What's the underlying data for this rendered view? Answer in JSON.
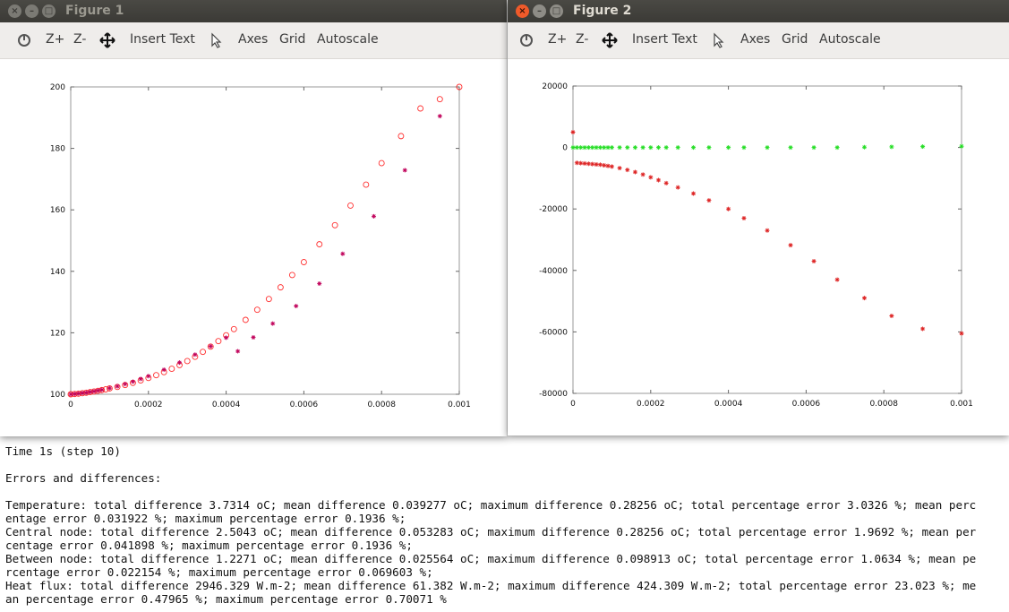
{
  "terminal": {
    "lines": [
      "Time 1s (step 10)",
      "",
      "Errors and differences:",
      "",
      "Temperature: total difference 3.7314 oC; mean difference 0.039277 oC; maximum difference 0.28256 oC; total percentage error 3.0326 %; mean perc",
      "entage error 0.031922 %; maximum percentage error 0.1936 %;",
      "Central node: total difference 2.5043 oC; mean difference 0.053283 oC; maximum difference 0.28256 oC; total percentage error 1.9692 %; mean per",
      "centage error 0.041898 %; maximum percentage error 0.1936 %;",
      "Between node: total difference 1.2271 oC; mean difference 0.025564 oC; maximum difference 0.098913 oC; total percentage error 1.0634 %; mean pe",
      "rcentage error 0.022154 %; maximum percentage error 0.069603 %;",
      "Heat flux: total difference 2946.329 W.m-2; mean difference 61.382 W.m-2; maximum difference 424.309 W.m-2; total percentage error 23.023 %; me",
      "an percentage error 0.47965 %; maximum percentage error 0.70071 %"
    ]
  },
  "windows": [
    {
      "title": "Figure 1",
      "toolbar": {
        "rotate_icon": "rotate-icon",
        "zoom_in": "Z+",
        "zoom_out": "Z-",
        "pan_icon": "pan-move-icon",
        "insert_text": "Insert Text",
        "select_icon": "pointer-select-icon",
        "axes": "Axes",
        "grid": "Grid",
        "autoscale": "Autoscale"
      }
    },
    {
      "title": "Figure 2",
      "toolbar": {
        "rotate_icon": "rotate-icon",
        "zoom_in": "Z+",
        "zoom_out": "Z-",
        "pan_icon": "pan-move-icon",
        "insert_text": "Insert Text",
        "select_icon": "pointer-select-icon",
        "axes": "Axes",
        "grid": "Grid",
        "autoscale": "Autoscale"
      }
    }
  ],
  "chart_data": [
    {
      "type": "scatter",
      "title": "",
      "xlabel": "",
      "ylabel": "",
      "xlim": [
        0,
        0.001
      ],
      "ylim": [
        100,
        200
      ],
      "grid": false,
      "xticks": [
        "0",
        "0.0002",
        "0.0004",
        "0.0006",
        "0.0008",
        "0.001"
      ],
      "yticks": [
        "100",
        "120",
        "140",
        "160",
        "180",
        "200"
      ],
      "series": [
        {
          "marker": "circle",
          "color": "#ff3030",
          "x": [
            0,
            1e-05,
            2e-05,
            3e-05,
            4e-05,
            5e-05,
            6e-05,
            7e-05,
            8e-05,
            9e-05,
            0.0001,
            0.00012,
            0.00014,
            0.00016,
            0.00018,
            0.0002,
            0.00022,
            0.00024,
            0.00026,
            0.00028,
            0.0003,
            0.00032,
            0.00034,
            0.00036,
            0.00038,
            0.0004,
            0.00042,
            0.00045,
            0.00048,
            0.00051,
            0.00054,
            0.00057,
            0.0006,
            0.00064,
            0.00068,
            0.00072,
            0.00076,
            0.0008,
            0.00085,
            0.0009,
            0.00095,
            0.001
          ],
          "y": [
            100,
            100.1,
            100.2,
            100.35,
            100.5,
            100.7,
            100.9,
            101.1,
            101.35,
            101.6,
            101.9,
            102.4,
            103.0,
            103.7,
            104.5,
            105.3,
            106.2,
            107.2,
            108.3,
            109.5,
            110.8,
            112.2,
            113.8,
            115.5,
            117.3,
            119.2,
            121.2,
            124.2,
            127.5,
            131.0,
            134.8,
            138.8,
            143.0,
            148.8,
            155.0,
            161.4,
            168.2,
            175.2,
            184.0,
            193.0,
            196.0,
            200
          ]
        },
        {
          "marker": "asterisk",
          "color": "#c0005a",
          "x": [
            0,
            1e-05,
            2e-05,
            3e-05,
            4e-05,
            5e-05,
            6e-05,
            7e-05,
            8e-05,
            0.0001,
            0.00012,
            0.00014,
            0.00016,
            0.00018,
            0.0002,
            0.00024,
            0.00028,
            0.00032,
            0.00036,
            0.0004,
            0.00043,
            0.00047,
            0.00052,
            0.00058,
            0.00064,
            0.0007,
            0.00078,
            0.00086,
            0.00095
          ],
          "y": [
            100,
            100.1,
            100.25,
            100.4,
            100.55,
            100.75,
            100.95,
            101.2,
            101.45,
            102.0,
            102.6,
            103.3,
            104.1,
            105.0,
            105.9,
            108.0,
            110.3,
            112.9,
            115.6,
            118.4,
            114.0,
            118.5,
            123.0,
            128.7,
            136.0,
            145.7,
            157.9,
            172.9,
            190.5
          ]
        }
      ]
    },
    {
      "type": "scatter",
      "title": "",
      "xlabel": "",
      "ylabel": "",
      "xlim": [
        0,
        0.001
      ],
      "ylim": [
        -80000,
        20000
      ],
      "grid": false,
      "xticks": [
        "0",
        "0.0002",
        "0.0004",
        "0.0006",
        "0.0008",
        "0.001"
      ],
      "yticks": [
        "20000",
        "0",
        "-20000",
        "-40000",
        "-60000",
        "-80000"
      ],
      "series": [
        {
          "marker": "asterisk",
          "color": "#22dd22",
          "x": [
            0,
            1e-05,
            2e-05,
            3e-05,
            4e-05,
            5e-05,
            6e-05,
            7e-05,
            8e-05,
            9e-05,
            0.0001,
            0.00012,
            0.00014,
            0.00016,
            0.00018,
            0.0002,
            0.00022,
            0.00024,
            0.00027,
            0.00031,
            0.00035,
            0.0004,
            0.00044,
            0.0005,
            0.00056,
            0.00062,
            0.00068,
            0.00075,
            0.00082,
            0.0009,
            0.001
          ],
          "y": [
            0,
            0,
            0,
            0,
            0,
            0,
            0,
            0,
            0,
            0,
            0,
            0,
            0,
            0,
            0,
            0,
            0,
            0,
            0,
            0,
            0,
            0,
            0,
            0,
            0,
            0,
            0,
            100,
            200,
            300,
            400
          ]
        },
        {
          "marker": "asterisk",
          "color": "#dd2222",
          "x": [
            0,
            1e-05,
            2e-05,
            3e-05,
            4e-05,
            5e-05,
            6e-05,
            7e-05,
            8e-05,
            9e-05,
            0.0001,
            0.00012,
            0.00014,
            0.00016,
            0.00018,
            0.0002,
            0.00022,
            0.00024,
            0.00027,
            0.00031,
            0.00035,
            0.0004,
            0.00044,
            0.0005,
            0.00056,
            0.00062,
            0.00068,
            0.00075,
            0.00082,
            0.0009,
            0.001
          ],
          "y": [
            5000,
            -5000,
            -5100,
            -5200,
            -5300,
            -5400,
            -5500,
            -5600,
            -5800,
            -6000,
            -6200,
            -6700,
            -7300,
            -8000,
            -8800,
            -9700,
            -10600,
            -11600,
            -13000,
            -15000,
            -17200,
            -20000,
            -23000,
            -27000,
            -31800,
            -37000,
            -43000,
            -49000,
            -54800,
            -59000,
            -60500
          ]
        }
      ]
    }
  ]
}
